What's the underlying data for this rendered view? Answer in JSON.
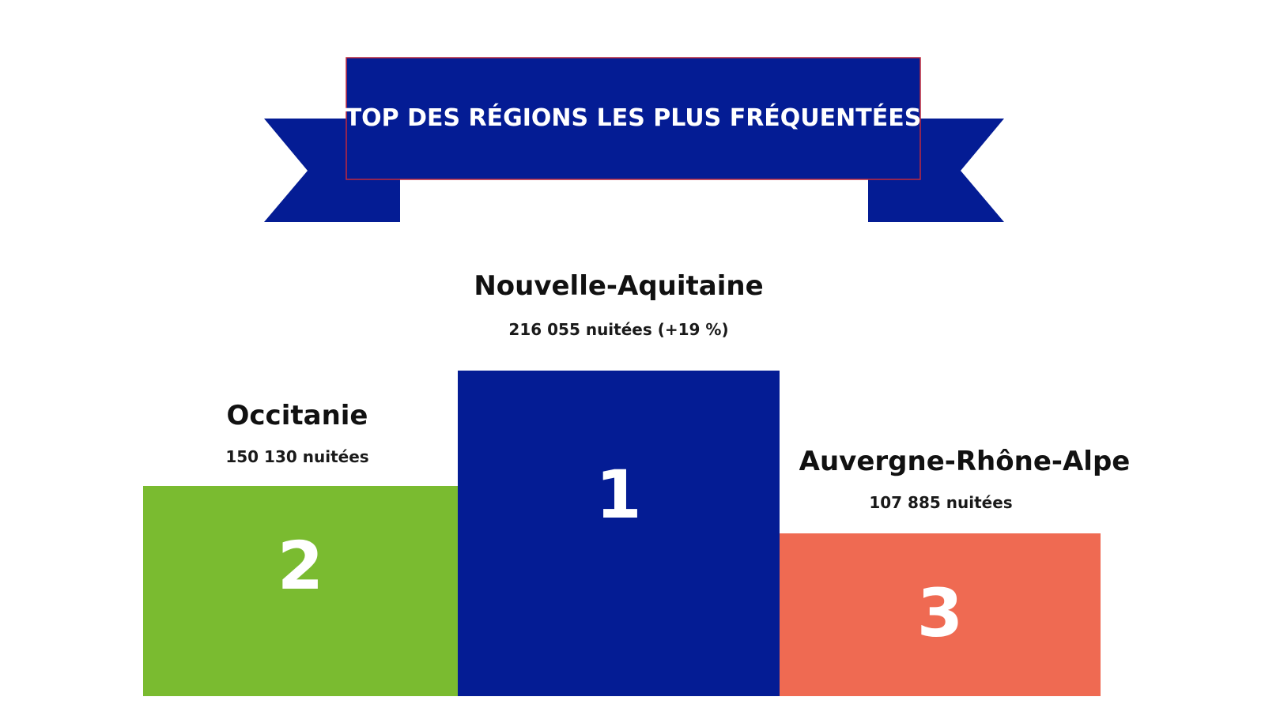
{
  "banner": {
    "title": "TOP DES RÉGIONS LES PLUS FRÉQUENTÉES",
    "color": "#041c94",
    "border_color": "#c0283c"
  },
  "podium": [
    {
      "rank": "1",
      "region": "Nouvelle-Aquitaine",
      "stat": "216 055 nuitées (+19 %)",
      "color": "#041c94"
    },
    {
      "rank": "2",
      "region": "Occitanie",
      "stat": "150 130 nuitées",
      "color": "#7abb30"
    },
    {
      "rank": "3",
      "region": "Auvergne-Rhône-Alpe",
      "stat": "107 885 nuitées",
      "color": "#ef6a52"
    }
  ]
}
